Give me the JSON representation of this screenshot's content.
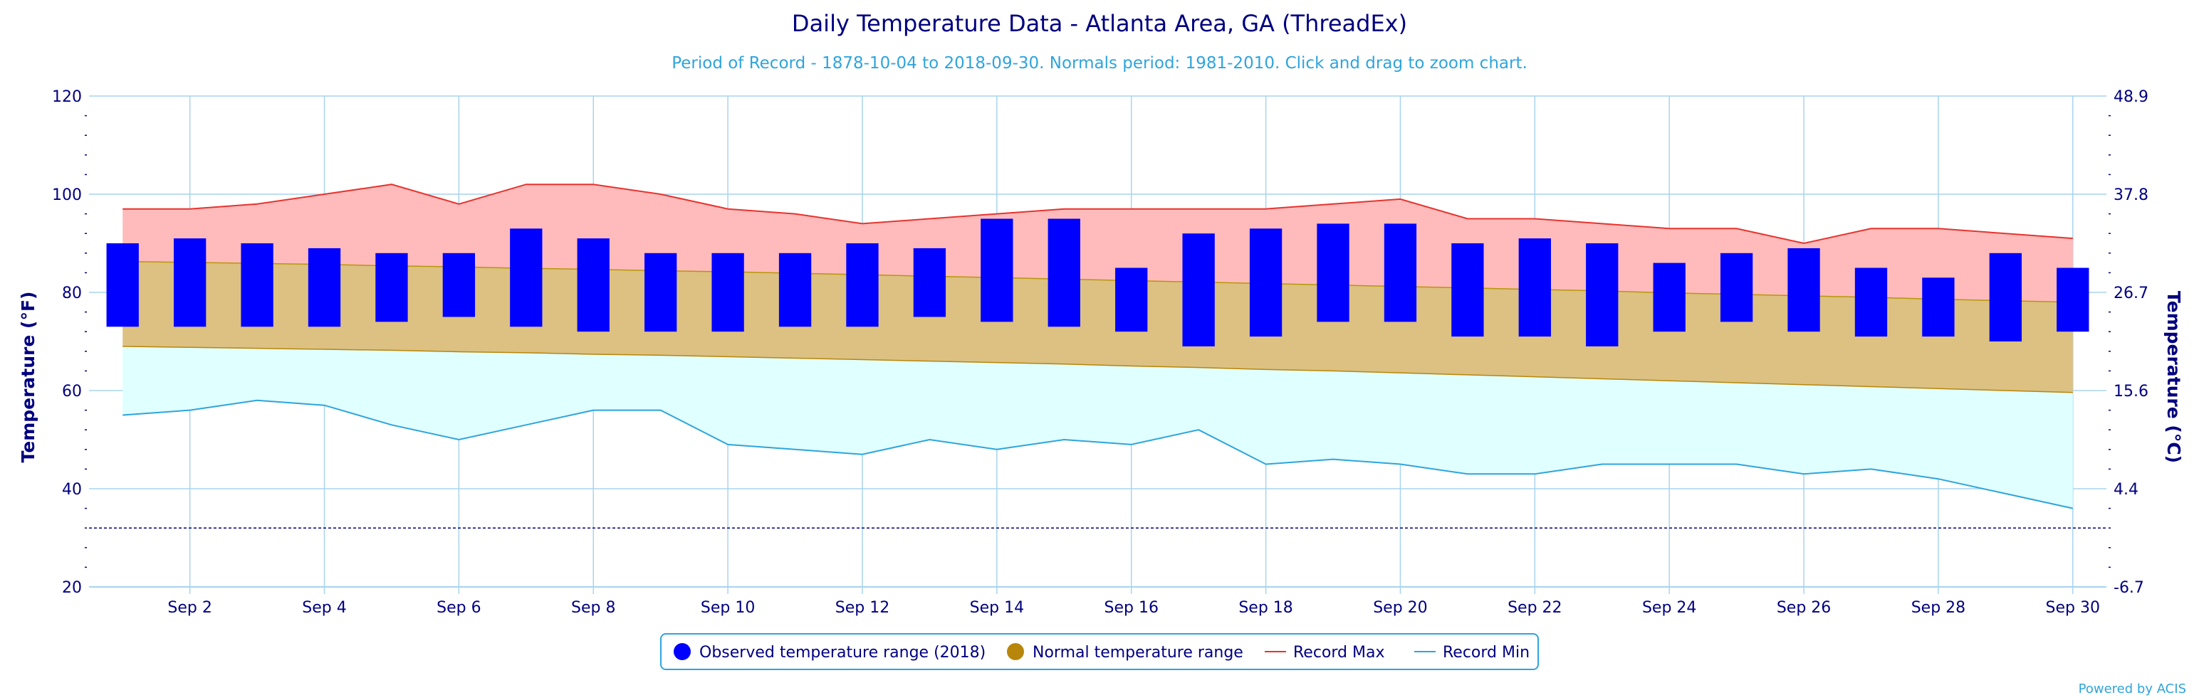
{
  "chart_data": {
    "type": "area",
    "title": "Daily Temperature Data - Atlanta Area, GA (ThreadEx)",
    "subtitle": "Period of Record - 1878-10-04 to 2018-09-30. Normals period: 1981-2010. Click and drag to zoom chart.",
    "ylabel_left": "Temperature (°F)",
    "ylabel_right": "Temperature (°C)",
    "ylim": [
      20,
      120
    ],
    "y_ticks_left": [
      "120",
      "100",
      "80",
      "60",
      "40",
      "20"
    ],
    "y_ticks_right": [
      "48.9",
      "37.8",
      "26.7",
      "15.6",
      "4.4",
      "-6.7"
    ],
    "freezing_line_f": 32,
    "x": [
      1,
      2,
      3,
      4,
      5,
      6,
      7,
      8,
      9,
      10,
      11,
      12,
      13,
      14,
      15,
      16,
      17,
      18,
      19,
      20,
      21,
      22,
      23,
      24,
      25,
      26,
      27,
      28,
      29,
      30
    ],
    "x_tick_labels": [
      {
        "day": 2,
        "label": "Sep 2"
      },
      {
        "day": 4,
        "label": "Sep 4"
      },
      {
        "day": 6,
        "label": "Sep 6"
      },
      {
        "day": 8,
        "label": "Sep 8"
      },
      {
        "day": 10,
        "label": "Sep 10"
      },
      {
        "day": 12,
        "label": "Sep 12"
      },
      {
        "day": 14,
        "label": "Sep 14"
      },
      {
        "day": 16,
        "label": "Sep 16"
      },
      {
        "day": 18,
        "label": "Sep 18"
      },
      {
        "day": 20,
        "label": "Sep 20"
      },
      {
        "day": 22,
        "label": "Sep 22"
      },
      {
        "day": 24,
        "label": "Sep 24"
      },
      {
        "day": 26,
        "label": "Sep 26"
      },
      {
        "day": 28,
        "label": "Sep 28"
      },
      {
        "day": 30,
        "label": "Sep 30"
      }
    ],
    "grid": true,
    "legend_position": "bottom-center",
    "series": [
      {
        "name": "Observed temperature range (2018)",
        "color": "#0000ff",
        "high": [
          90,
          91,
          90,
          89,
          88,
          88,
          93,
          91,
          88,
          88,
          88,
          90,
          89,
          95,
          95,
          85,
          92,
          93,
          94,
          94,
          90,
          91,
          90,
          86,
          88,
          89,
          85,
          83,
          88,
          85
        ],
        "low": [
          73,
          73,
          73,
          73,
          74,
          75,
          73,
          72,
          72,
          72,
          73,
          73,
          75,
          74,
          73,
          72,
          69,
          71,
          74,
          74,
          71,
          71,
          69,
          72,
          74,
          72,
          71,
          71,
          70,
          72
        ]
      },
      {
        "name": "Normal temperature range",
        "color": "#b8860b",
        "high": [
          86.3,
          86.1,
          85.9,
          85.7,
          85.4,
          85.2,
          84.9,
          84.7,
          84.4,
          84.2,
          83.9,
          83.6,
          83.3,
          83.0,
          82.7,
          82.4,
          82.1,
          81.8,
          81.5,
          81.2,
          80.9,
          80.6,
          80.3,
          79.9,
          79.6,
          79.3,
          79.0,
          78.6,
          78.3,
          78.0
        ],
        "low": [
          69.0,
          68.8,
          68.6,
          68.4,
          68.2,
          67.9,
          67.7,
          67.4,
          67.2,
          66.9,
          66.6,
          66.3,
          66.0,
          65.7,
          65.4,
          65.0,
          64.7,
          64.3,
          64.0,
          63.6,
          63.2,
          62.8,
          62.4,
          62.0,
          61.6,
          61.2,
          60.8,
          60.4,
          60.0,
          59.6
        ]
      },
      {
        "name": "Record Max",
        "color": "#e8332e",
        "values": [
          97,
          97,
          98,
          100,
          102,
          98,
          102,
          102,
          100,
          97,
          96,
          94,
          95,
          96,
          97,
          97,
          97,
          97,
          98,
          99,
          95,
          95,
          94,
          93,
          93,
          90,
          93,
          93,
          92,
          91
        ]
      },
      {
        "name": "Record Min",
        "color": "#2fa4dc",
        "values": [
          55,
          56,
          58,
          57,
          53,
          50,
          53,
          56,
          56,
          49,
          48,
          47,
          50,
          48,
          50,
          49,
          52,
          45,
          46,
          45,
          43,
          43,
          45,
          45,
          45,
          43,
          44,
          42,
          39,
          36
        ]
      }
    ]
  },
  "colors": {
    "record_band": "#ffbbbb",
    "normal_band": "#dcc182",
    "below_normal_band": "#e0ffff",
    "grid": "#a8d4ee",
    "text": "#000080"
  },
  "credit": "Powered by ACIS"
}
